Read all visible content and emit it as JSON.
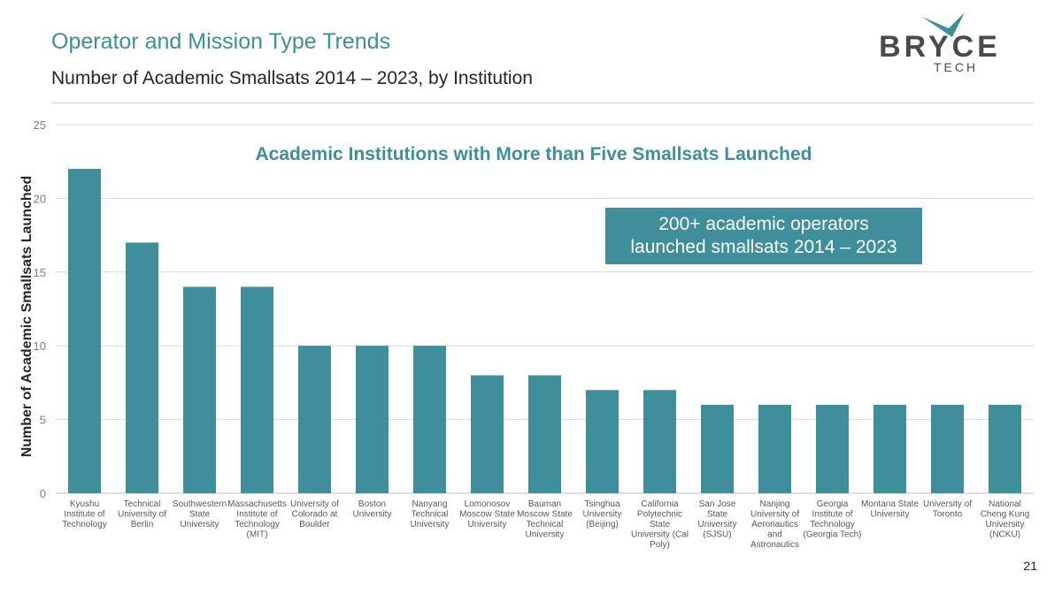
{
  "header": {
    "title": "Operator and Mission Type Trends",
    "subtitle": "Number of Academic Smallsats 2014 – 2023, by Institution"
  },
  "logo": {
    "main": "BRYCE",
    "sub": "TECH"
  },
  "page_number": "21",
  "callout": {
    "line1": "200+ academic operators",
    "line2": "launched smallsats 2014 – 2023"
  },
  "colors": {
    "accent": "#3e8f9b",
    "bar": "#3e8f9b",
    "logo_gray": "#4a4a4a"
  },
  "chart_data": {
    "type": "bar",
    "title": "Academic Institutions with More than Five Smallsats Launched",
    "xlabel": "",
    "ylabel": "Number of Academic Smallsats Launched",
    "ylim": [
      0,
      25
    ],
    "yticks": [
      0,
      5,
      10,
      15,
      20,
      25
    ],
    "grid": true,
    "categories": [
      [
        "Kyushu",
        "Institute of",
        "Technology"
      ],
      [
        "Technical",
        "University of",
        "Berlin"
      ],
      [
        "Southwestern",
        "State",
        "University"
      ],
      [
        "Massachusetts",
        "Institute of",
        "Technology",
        "(MIT)"
      ],
      [
        "University of",
        "Colorado at",
        "Boulder"
      ],
      [
        "Boston",
        "University"
      ],
      [
        "Nanyang",
        "Technical",
        "University"
      ],
      [
        "Lomonosov",
        "Moscow State",
        "University"
      ],
      [
        "Bauman",
        "Moscow State",
        "Technical",
        "University"
      ],
      [
        "Tsinghua",
        "University",
        "(Beijing)"
      ],
      [
        "California",
        "Polytechnic",
        "State",
        "University (Cal",
        "Poly)"
      ],
      [
        "San Jose",
        "State",
        "University",
        "(SJSU)"
      ],
      [
        "Nanjing",
        "University of",
        "Aeronautics",
        "and",
        "Astronautics"
      ],
      [
        "Georgia",
        "Institute of",
        "Technology",
        "(Georgia Tech)"
      ],
      [
        "Montana State",
        "University"
      ],
      [
        "University of",
        "Toronto"
      ],
      [
        "National",
        "Cheng Kung",
        "University",
        "(NCKU)"
      ]
    ],
    "values": [
      22,
      17,
      14,
      14,
      10,
      10,
      10,
      8,
      8,
      7,
      7,
      6,
      6,
      6,
      6,
      6,
      6
    ]
  }
}
